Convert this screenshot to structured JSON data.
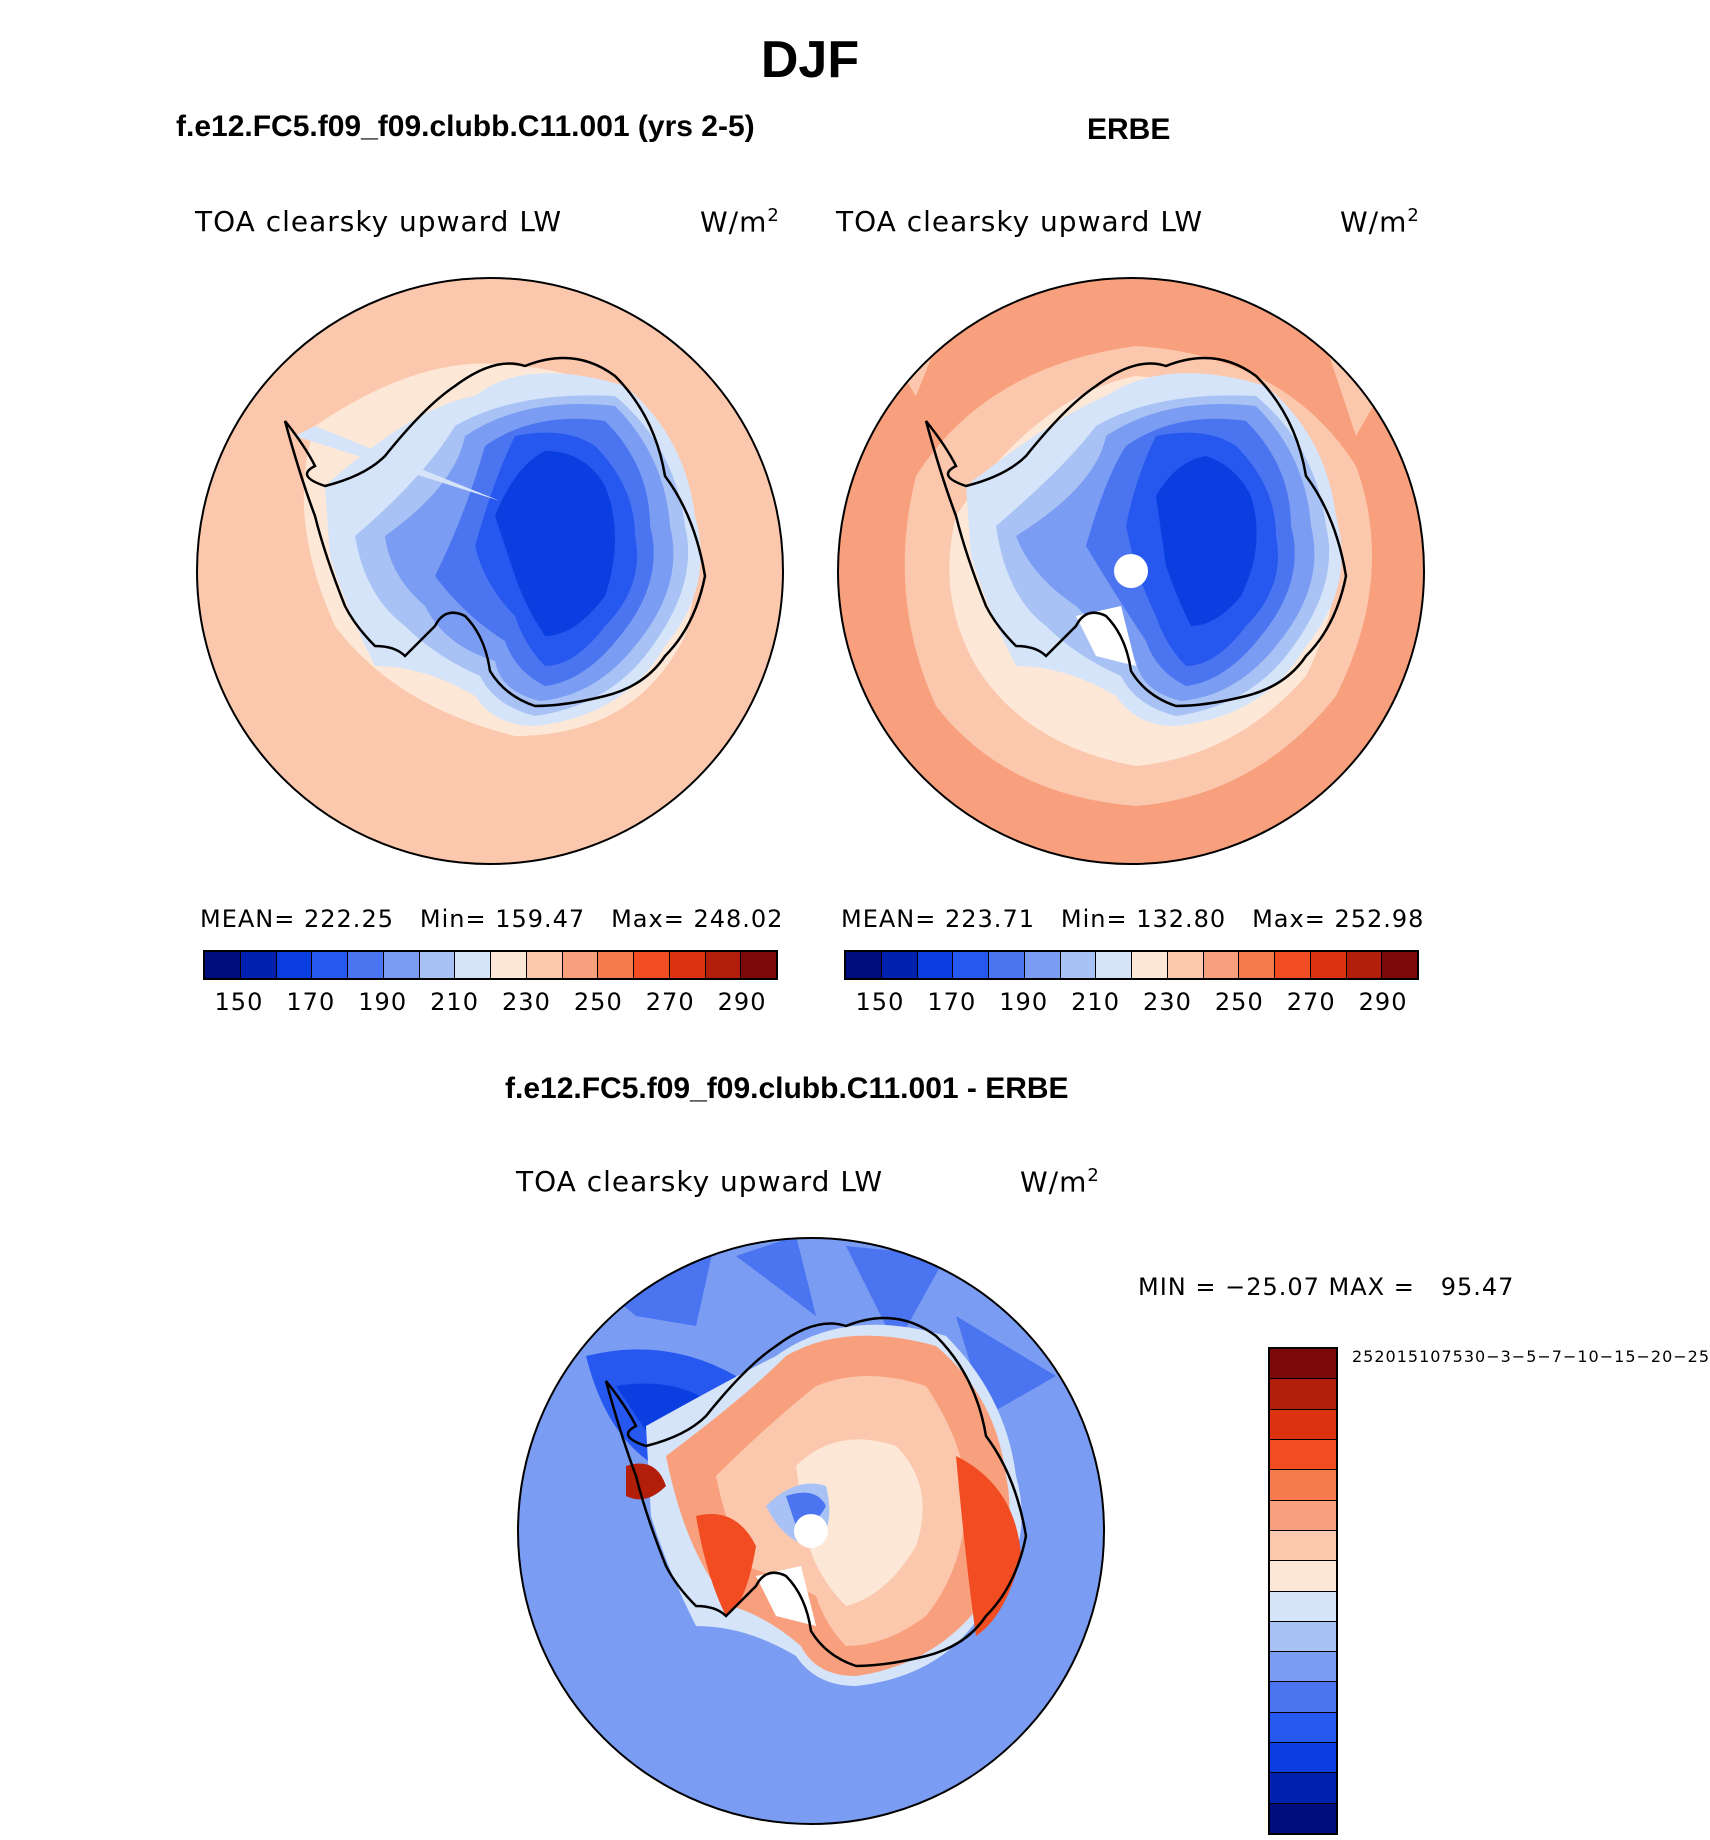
{
  "title": "DJF",
  "colors": {
    "abs_scale": [
      "#000e7e",
      "#0021b0",
      "#0a3ee0",
      "#2658f0",
      "#4a74f0",
      "#7a9cf2",
      "#a9c2f5",
      "#d5e4f8",
      "#fde8d8",
      "#fbc8ad",
      "#f8a07d",
      "#f57a4e",
      "#f24d22",
      "#dc3210",
      "#b31e0a",
      "#7c0808"
    ],
    "diff_scale": [
      "#000e7e",
      "#0021b0",
      "#0a3ee0",
      "#2658f0",
      "#4a74f0",
      "#7a9cf2",
      "#a9c2f5",
      "#d5e4f8",
      "#fde8d8",
      "#fbc8ad",
      "#f8a07d",
      "#f57a4e",
      "#f24d22",
      "#dc3210",
      "#b31e0a",
      "#7c0808"
    ]
  },
  "panels": [
    {
      "title": "f.e12.FC5.f09_f09.clubb.C11.001 (yrs 2-5)",
      "variable": "TOA clearsky upward LW",
      "units": "W/m",
      "units_sup": "2",
      "mean_label": "MEAN=",
      "mean": "222.25",
      "min_label": "Min=",
      "min": "159.47",
      "max_label": "Max=",
      "max": "248.02",
      "ticks": [
        "150",
        "170",
        "190",
        "210",
        "230",
        "250",
        "270",
        "290"
      ]
    },
    {
      "title": "ERBE",
      "variable": "TOA clearsky upward LW",
      "units": "W/m",
      "units_sup": "2",
      "mean_label": "MEAN=",
      "mean": "223.71",
      "min_label": "Min=",
      "min": "132.80",
      "max_label": "Max=",
      "max": "252.98",
      "ticks": [
        "150",
        "170",
        "190",
        "210",
        "230",
        "250",
        "270",
        "290"
      ]
    }
  ],
  "diff": {
    "title": "f.e12.FC5.f09_f09.clubb.C11.001 - ERBE",
    "variable": "TOA clearsky upward LW",
    "units": "W/m",
    "units_sup": "2",
    "minmax": "MIN = −25.07 MAX =   95.47",
    "ticks": [
      "25",
      "20",
      "15",
      "10",
      "7",
      "5",
      "3",
      "0",
      "−3",
      "−5",
      "−7",
      "−10",
      "−15",
      "−20",
      "−25"
    ]
  }
}
